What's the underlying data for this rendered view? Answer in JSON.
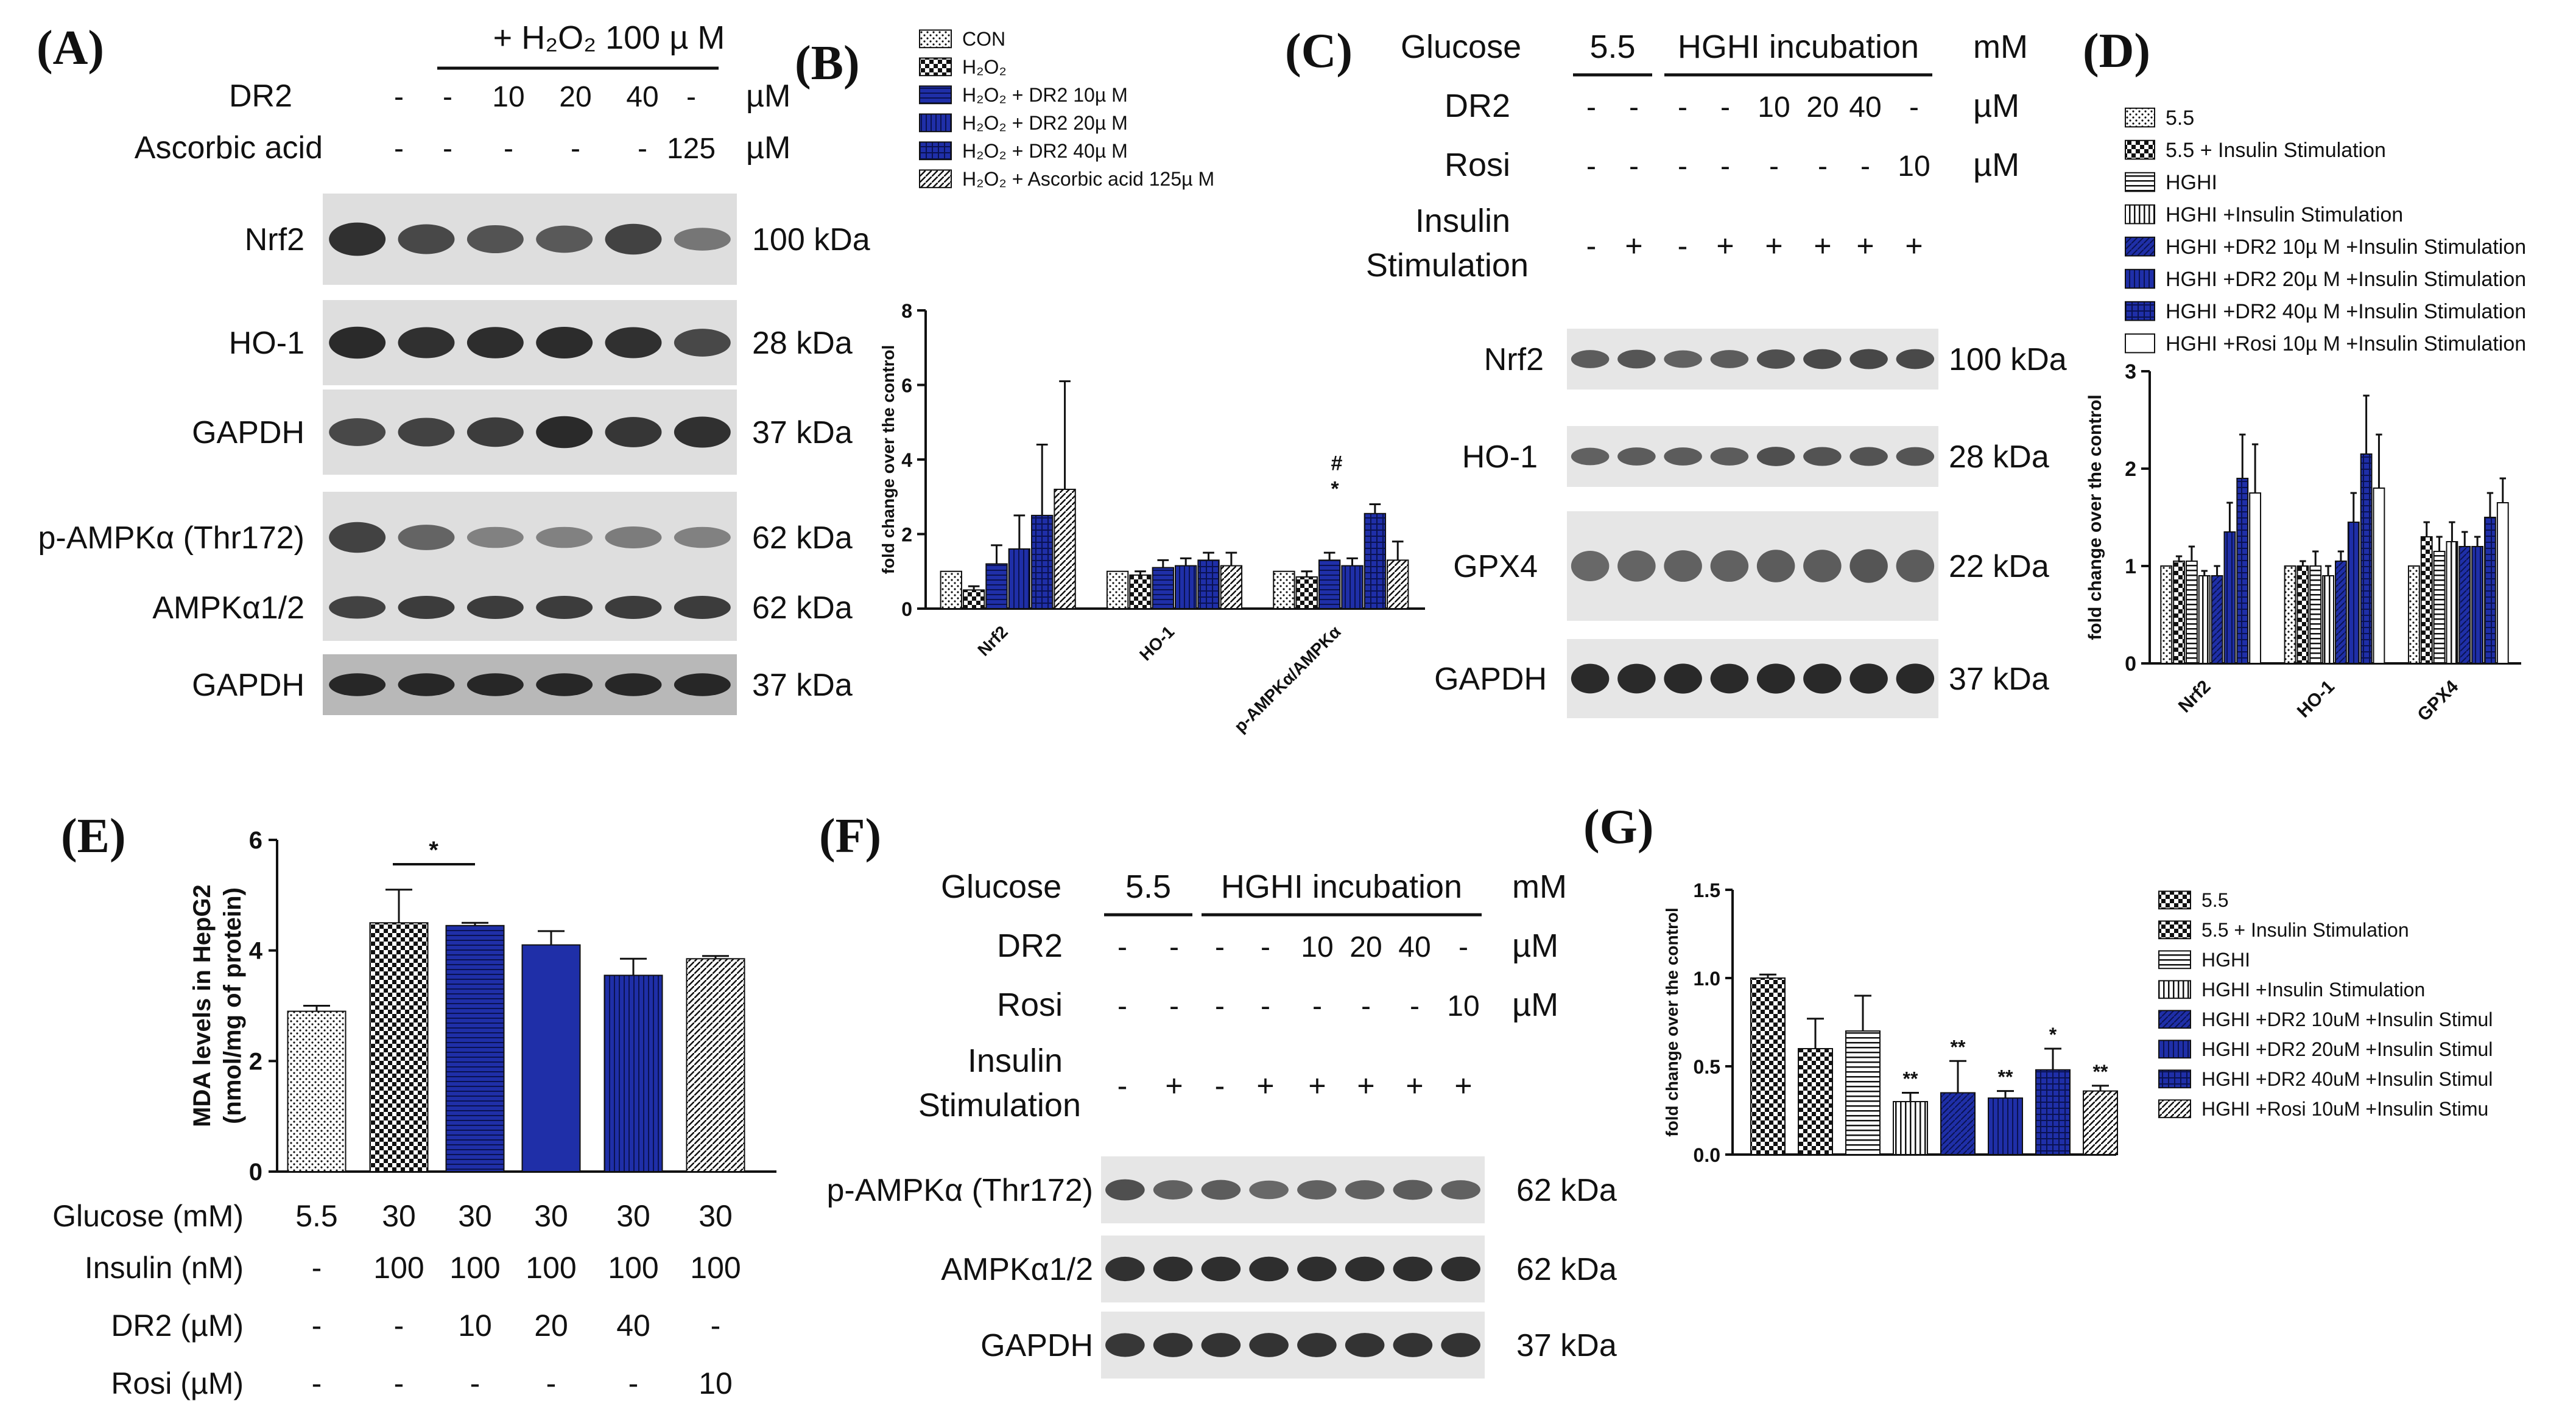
{
  "colors": {
    "blue": "#1f2fa8",
    "dark": "#0d1a6e",
    "blot_bg": "#e2e2e2",
    "band": "#2a2a2a"
  },
  "panelA": {
    "label": "(A)",
    "treatment": "+ H₂O₂ 100 µ M",
    "rows": [
      {
        "name": "DR2",
        "values": [
          "-",
          "-",
          "10",
          "20",
          "40",
          "-"
        ],
        "unit": "µM"
      },
      {
        "name": "Ascorbic acid",
        "values": [
          "-",
          "-",
          "-",
          "-",
          "-",
          "125"
        ],
        "unit": "µM"
      }
    ],
    "blots": [
      {
        "name": "Nrf2",
        "kda": "100 kDa"
      },
      {
        "name": "HO-1",
        "kda": "28 kDa"
      },
      {
        "name": "GAPDH",
        "kda": "37 kDa"
      },
      {
        "name": "p-AMPKα (Thr172)",
        "kda": "62 kDa"
      },
      {
        "name": "AMPKα1/2",
        "kda": "62 kDa"
      },
      {
        "name": "GAPDH",
        "kda": "37 kDa"
      }
    ]
  },
  "panelB": {
    "label": "(B)",
    "chart_data": {
      "type": "bar",
      "ylabel": "fold change over the control",
      "ylim": [
        0,
        8
      ],
      "yticks": [
        "0",
        "2",
        "4",
        "6",
        "8"
      ],
      "categories": [
        "Nrf2",
        "HO-1",
        "p-AMPKα/AMPKα"
      ],
      "series": [
        {
          "name": "CON",
          "values": [
            1.0,
            1.0,
            1.0
          ],
          "errors": [
            0,
            0,
            0
          ]
        },
        {
          "name": "H₂O₂",
          "values": [
            0.5,
            0.9,
            0.85
          ],
          "errors": [
            0.1,
            0.1,
            0.15
          ]
        },
        {
          "name": "H₂O₂ + DR2 10µ M",
          "values": [
            1.2,
            1.1,
            1.3
          ],
          "errors": [
            0.5,
            0.2,
            0.2
          ]
        },
        {
          "name": "H₂O₂ + DR2 20µ M",
          "values": [
            1.6,
            1.15,
            1.15
          ],
          "errors": [
            0.9,
            0.2,
            0.2
          ]
        },
        {
          "name": "H₂O₂ + DR2 40µ M",
          "values": [
            2.5,
            1.3,
            2.55
          ],
          "errors": [
            1.9,
            0.2,
            0.25
          ]
        },
        {
          "name": "H₂O₂ + Ascorbic acid 125µ M",
          "values": [
            3.2,
            1.15,
            1.3
          ],
          "errors": [
            2.9,
            0.35,
            0.5
          ]
        }
      ],
      "annotations": [
        "*",
        "#"
      ]
    }
  },
  "panelC": {
    "label": "(C)",
    "glucose": {
      "label": "Glucose",
      "v1": "5.5",
      "v2": "HGHI incubation",
      "unit": "mM"
    },
    "rows": [
      {
        "name": "DR2",
        "values": [
          "-",
          "-",
          "-",
          "-",
          "10",
          "20",
          "40",
          "-"
        ],
        "unit": "µM"
      },
      {
        "name": "Rosi",
        "values": [
          "-",
          "-",
          "-",
          "-",
          "-",
          "-",
          "-",
          "10"
        ],
        "unit": "µM"
      }
    ],
    "insulin": {
      "line1": "Insulin",
      "line2": "Stimulation",
      "values": [
        "-",
        "+",
        "-",
        "+",
        "+",
        "+",
        "+",
        "+"
      ]
    },
    "blots": [
      {
        "name": "Nrf2",
        "kda": "100 kDa"
      },
      {
        "name": "HO-1",
        "kda": "28 kDa"
      },
      {
        "name": "GPX4",
        "kda": "22 kDa"
      },
      {
        "name": "GAPDH",
        "kda": "37 kDa"
      }
    ]
  },
  "panelD": {
    "label": "(D)",
    "chart_data": {
      "type": "bar",
      "ylabel": "fold change over the control",
      "ylim": [
        0,
        3
      ],
      "yticks": [
        "0",
        "1",
        "2",
        "3"
      ],
      "categories": [
        "Nrf2",
        "HO-1",
        "GPX4"
      ],
      "series": [
        {
          "name": "5.5",
          "values": [
            1.0,
            1.0,
            1.0
          ],
          "errors": [
            0,
            0,
            0
          ]
        },
        {
          "name": "5.5 + Insulin Stimulation",
          "values": [
            1.05,
            1.0,
            1.3
          ],
          "errors": [
            0.05,
            0.05,
            0.15
          ]
        },
        {
          "name": "HGHI",
          "values": [
            1.05,
            1.0,
            1.15
          ],
          "errors": [
            0.15,
            0.15,
            0.15
          ]
        },
        {
          "name": "HGHI +Insulin Stimulation",
          "values": [
            0.9,
            0.9,
            1.25
          ],
          "errors": [
            0.05,
            0.1,
            0.2
          ]
        },
        {
          "name": "HGHI +DR2 10µ M +Insulin Stimulation",
          "values": [
            0.9,
            1.05,
            1.2
          ],
          "errors": [
            0.1,
            0.1,
            0.15
          ]
        },
        {
          "name": "HGHI +DR2 20µ M +Insulin Stimulation",
          "values": [
            1.35,
            1.45,
            1.2
          ],
          "errors": [
            0.3,
            0.3,
            0.1
          ]
        },
        {
          "name": "HGHI +DR2 40µ M +Insulin Stimulation",
          "values": [
            1.9,
            2.15,
            1.5
          ],
          "errors": [
            0.45,
            0.6,
            0.25
          ]
        },
        {
          "name": "HGHI +Rosi 10µ M +Insulin Stimulation",
          "values": [
            1.75,
            1.8,
            1.65
          ],
          "errors": [
            0.5,
            0.55,
            0.25
          ]
        }
      ]
    }
  },
  "panelE": {
    "label": "(E)",
    "chart_data": {
      "type": "bar",
      "ylabel_line1": "MDA levels in HepG2",
      "ylabel_line2": "(nmol/mg of protein)",
      "ylim": [
        0,
        6
      ],
      "yticks": [
        "0",
        "2",
        "4",
        "6"
      ],
      "values": [
        2.9,
        4.5,
        4.45,
        4.1,
        3.55,
        3.85
      ],
      "errors": [
        0.1,
        0.6,
        0.05,
        0.25,
        0.3,
        0.05
      ],
      "annotations": [
        "*"
      ]
    },
    "rows": [
      {
        "name": "Glucose (mM)",
        "values": [
          "5.5",
          "30",
          "30",
          "30",
          "30",
          "30"
        ]
      },
      {
        "name": "Insulin (nM)",
        "values": [
          "-",
          "100",
          "100",
          "100",
          "100",
          "100"
        ]
      },
      {
        "name": "DR2 (µM)",
        "values": [
          "-",
          "-",
          "10",
          "20",
          "40",
          "-"
        ]
      },
      {
        "name": "Rosi (µM)",
        "values": [
          "-",
          "-",
          "-",
          "-",
          "-",
          "10"
        ]
      }
    ]
  },
  "panelF": {
    "label": "(F)",
    "glucose": {
      "label": "Glucose",
      "v1": "5.5",
      "v2": "HGHI incubation",
      "unit": "mM"
    },
    "rows": [
      {
        "name": "DR2",
        "values": [
          "-",
          "-",
          "-",
          "-",
          "10",
          "20",
          "40",
          "-"
        ],
        "unit": "µM"
      },
      {
        "name": "Rosi",
        "values": [
          "-",
          "-",
          "-",
          "-",
          "-",
          "-",
          "-",
          "10"
        ],
        "unit": "µM"
      }
    ],
    "insulin": {
      "line1": "Insulin",
      "line2": "Stimulation",
      "values": [
        "-",
        "+",
        "-",
        "+",
        "+",
        "+",
        "+",
        "+"
      ]
    },
    "blots": [
      {
        "name": "p-AMPKα (Thr172)",
        "kda": "62 kDa"
      },
      {
        "name": "AMPKα1/2",
        "kda": "62 kDa"
      },
      {
        "name": "GAPDH",
        "kda": "37 kDa"
      }
    ]
  },
  "panelG": {
    "label": "(G)",
    "chart_data": {
      "type": "bar",
      "ylabel": "fold change over the control",
      "ylim": [
        0,
        1.5
      ],
      "yticks": [
        "0.0",
        "0.5",
        "1.0",
        "1.5"
      ],
      "legend": [
        "5.5",
        "5.5 + Insulin Stimulation",
        "HGHI",
        "HGHI +Insulin Stimulation",
        "HGHI +DR2 10uM +Insulin Stimul",
        "HGHI +DR2 20uM +Insulin Stimul",
        "HGHI +DR2 40uM +Insulin Stimul",
        "HGHI +Rosi 10uM +Insulin Stimu"
      ],
      "values": [
        1.0,
        0.6,
        0.7,
        0.3,
        0.35,
        0.32,
        0.48,
        0.36
      ],
      "errors": [
        0.02,
        0.17,
        0.2,
        0.05,
        0.18,
        0.04,
        0.12,
        0.03
      ],
      "annotations": [
        "",
        "",
        "",
        "**",
        "**",
        "**",
        "*",
        "**"
      ]
    }
  }
}
